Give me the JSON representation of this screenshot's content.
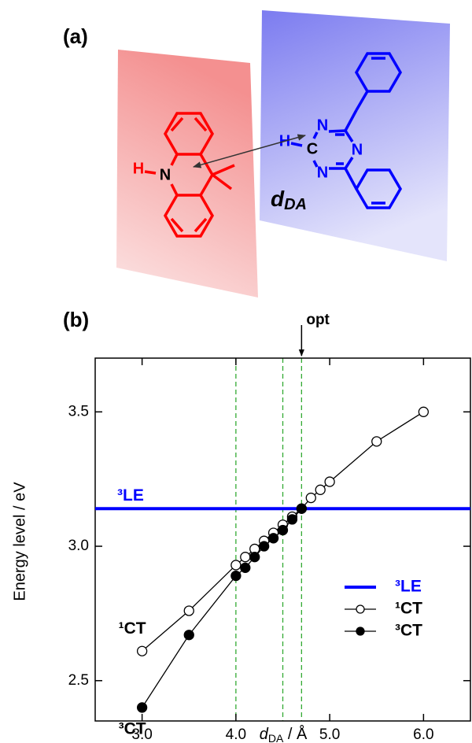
{
  "panel_a": {
    "label": "(a)",
    "donor_atoms": {
      "n": "N",
      "h": "H"
    },
    "acceptor_atoms": {
      "c": "C",
      "h": "H",
      "n1": "N",
      "n2": "N",
      "n3": "N"
    },
    "distance_symbol": "d",
    "distance_subscript": "DA"
  },
  "chart_data": {
    "type": "line",
    "panel_label": "(b)",
    "ylabel": "Energy level / eV",
    "xlabel_symbol": "d",
    "xlabel_subscript": "DA",
    "xlabel_unit": " / Å",
    "xlim": [
      2.5,
      6.5
    ],
    "ylim": [
      2.35,
      3.7
    ],
    "xticks": [
      {
        "value": 3,
        "label": "3.0"
      },
      {
        "value": 4,
        "label": "4.0"
      },
      {
        "value": 5,
        "label": "5.0"
      },
      {
        "value": 6,
        "label": "6.0"
      }
    ],
    "yticks": [
      {
        "value": 2.5,
        "label": "2.5"
      },
      {
        "value": 3,
        "label": "3.0"
      },
      {
        "value": 3.5,
        "label": "3.5"
      }
    ],
    "vlines": [
      4.0,
      4.5,
      4.7
    ],
    "vline_color": "#33aa33",
    "annotation": {
      "text": "opt",
      "x": 4.7
    },
    "legend": "lower right",
    "hline": {
      "name": "³LE",
      "color": "#0000ff",
      "value": 3.14
    },
    "series": [
      {
        "name": "¹CT",
        "color": "#000000",
        "marker": "open",
        "x": [
          3.0,
          3.5,
          4.0,
          4.1,
          4.2,
          4.3,
          4.4,
          4.5,
          4.6,
          4.7,
          4.8,
          4.9,
          5.0,
          5.5,
          6.0
        ],
        "values": [
          2.61,
          2.76,
          2.93,
          2.96,
          2.99,
          3.02,
          3.05,
          3.08,
          3.11,
          3.14,
          3.18,
          3.21,
          3.24,
          3.39,
          3.5
        ]
      },
      {
        "name": "³CT",
        "color": "#000000",
        "marker": "filled",
        "x": [
          3.0,
          3.5,
          4.0,
          4.1,
          4.2,
          4.3,
          4.4,
          4.5,
          4.6,
          4.7
        ],
        "values": [
          2.4,
          2.67,
          2.89,
          2.92,
          2.96,
          3.0,
          3.03,
          3.06,
          3.1,
          3.14
        ]
      }
    ]
  }
}
